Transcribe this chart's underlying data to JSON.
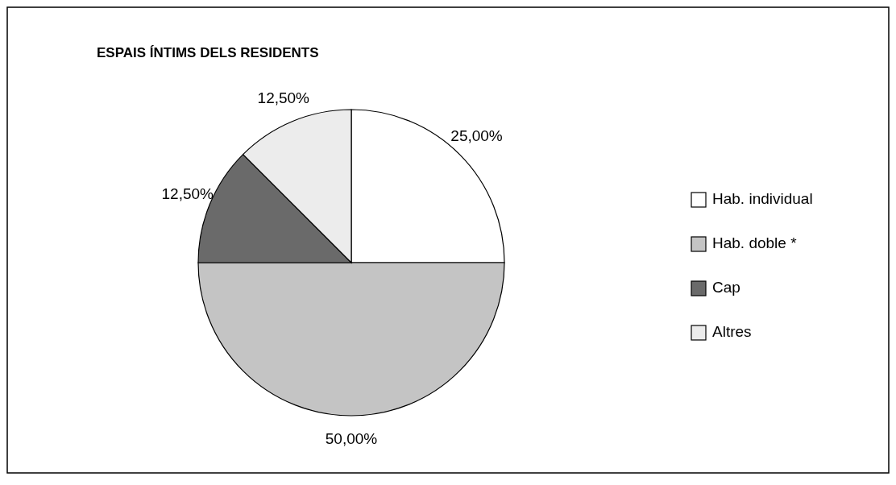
{
  "chart_data": {
    "type": "pie",
    "title": "ESPAIS  ÍNTIMS DELS RESIDENTS",
    "categories": [
      "Hab. individual",
      "Hab. doble *",
      "Cap",
      "Altres"
    ],
    "values": [
      25,
      50,
      12.5,
      12.5
    ],
    "colors": [
      "#ffffff",
      "#c4c4c4",
      "#6a6a6a",
      "#ececec"
    ],
    "value_labels": [
      "25,00%",
      "50,00%",
      "12,50%",
      "12,50%"
    ],
    "legend": "right"
  }
}
